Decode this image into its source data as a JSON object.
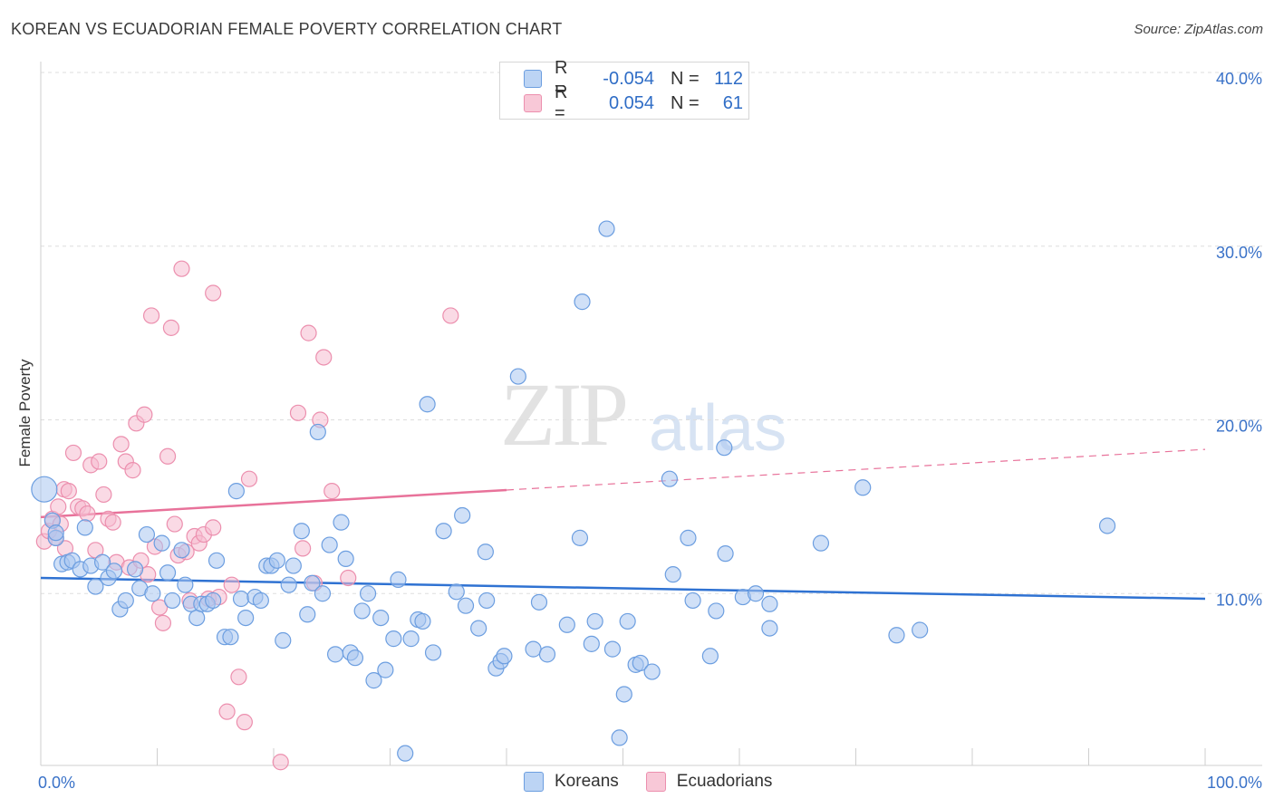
{
  "title": "KOREAN VS ECUADORIAN FEMALE POVERTY CORRELATION CHART",
  "source": "Source: ZipAtlas.com",
  "watermark": {
    "zip": "ZIP",
    "atlas": "atlas"
  },
  "legend": {
    "rows": [
      {
        "r_label": "R =",
        "r_value": "-0.054",
        "n_label": "N =",
        "n_value": "112"
      },
      {
        "r_label": "R =",
        "r_value": "0.054",
        "n_label": "N =",
        "n_value": "61"
      }
    ]
  },
  "bottom_legend": {
    "koreans": "Koreans",
    "ecuadorians": "Ecuadorians"
  },
  "colors": {
    "korean_fill": "#a9c7f0",
    "korean_stroke": "#6c9ee0",
    "korean_line": "#2f72d2",
    "ecuadorian_fill": "#f6bccf",
    "ecuadorian_stroke": "#ec8fae",
    "ecuadorian_line": "#e8729a",
    "grid": "#dedede",
    "axis_label": "#3a72c8"
  },
  "chart_data": {
    "type": "scatter",
    "title": "KOREAN VS ECUADORIAN FEMALE POVERTY CORRELATION CHART",
    "xlabel": "",
    "ylabel": "Female Poverty",
    "xlim": [
      0,
      100
    ],
    "ylim": [
      0,
      40
    ],
    "x_tick_labels": [
      "0.0%",
      "100.0%"
    ],
    "y_ticks": [
      10,
      20,
      30,
      40
    ],
    "y_tick_labels": [
      "10.0%",
      "20.0%",
      "30.0%",
      "40.0%"
    ],
    "grid": true,
    "series": [
      {
        "name": "Koreans",
        "r": -0.054,
        "n": 112,
        "trend": {
          "x0": 0,
          "y0": 10.9,
          "x1": 100,
          "y1": 9.7,
          "solid_until": 100
        },
        "points": [
          [
            0.3,
            16.0
          ],
          [
            1.0,
            14.2
          ],
          [
            1.3,
            13.2
          ],
          [
            1.8,
            11.7
          ],
          [
            2.3,
            11.8
          ],
          [
            2.7,
            11.9
          ],
          [
            3.4,
            11.4
          ],
          [
            3.8,
            13.8
          ],
          [
            4.3,
            11.6
          ],
          [
            4.7,
            10.4
          ],
          [
            5.3,
            11.8
          ],
          [
            5.8,
            10.9
          ],
          [
            6.3,
            11.3
          ],
          [
            6.8,
            9.1
          ],
          [
            7.3,
            9.6
          ],
          [
            8.1,
            11.4
          ],
          [
            8.5,
            10.3
          ],
          [
            9.1,
            13.4
          ],
          [
            9.6,
            10.0
          ],
          [
            10.4,
            12.9
          ],
          [
            10.9,
            11.2
          ],
          [
            11.3,
            9.6
          ],
          [
            12.1,
            12.5
          ],
          [
            12.4,
            10.5
          ],
          [
            12.9,
            9.4
          ],
          [
            13.4,
            8.6
          ],
          [
            13.8,
            9.4
          ],
          [
            14.3,
            9.4
          ],
          [
            14.8,
            9.6
          ],
          [
            15.1,
            11.9
          ],
          [
            15.8,
            7.5
          ],
          [
            16.3,
            7.5
          ],
          [
            16.8,
            15.9
          ],
          [
            17.2,
            9.7
          ],
          [
            17.6,
            8.6
          ],
          [
            18.4,
            9.8
          ],
          [
            18.9,
            9.6
          ],
          [
            19.4,
            11.6
          ],
          [
            19.8,
            11.6
          ],
          [
            20.3,
            11.9
          ],
          [
            20.8,
            7.3
          ],
          [
            21.3,
            10.5
          ],
          [
            21.7,
            11.6
          ],
          [
            22.4,
            13.6
          ],
          [
            22.9,
            8.8
          ],
          [
            23.3,
            10.6
          ],
          [
            23.8,
            19.3
          ],
          [
            24.2,
            10.0
          ],
          [
            24.8,
            12.8
          ],
          [
            25.3,
            6.5
          ],
          [
            25.8,
            14.1
          ],
          [
            26.2,
            12.0
          ],
          [
            26.6,
            6.6
          ],
          [
            27.0,
            6.3
          ],
          [
            27.6,
            9.0
          ],
          [
            28.1,
            10.0
          ],
          [
            28.6,
            5.0
          ],
          [
            29.2,
            8.6
          ],
          [
            29.6,
            5.6
          ],
          [
            30.3,
            7.4
          ],
          [
            30.7,
            10.8
          ],
          [
            31.3,
            0.8
          ],
          [
            31.8,
            7.4
          ],
          [
            32.4,
            8.5
          ],
          [
            32.8,
            8.4
          ],
          [
            33.2,
            20.9
          ],
          [
            33.7,
            6.6
          ],
          [
            34.6,
            13.6
          ],
          [
            35.7,
            10.1
          ],
          [
            36.2,
            14.5
          ],
          [
            36.5,
            9.3
          ],
          [
            37.6,
            8.0
          ],
          [
            38.2,
            12.4
          ],
          [
            38.3,
            9.6
          ],
          [
            39.1,
            5.7
          ],
          [
            39.5,
            6.1
          ],
          [
            39.8,
            6.4
          ],
          [
            41.0,
            22.5
          ],
          [
            42.3,
            6.8
          ],
          [
            42.8,
            9.5
          ],
          [
            43.5,
            6.5
          ],
          [
            45.2,
            8.2
          ],
          [
            46.3,
            13.2
          ],
          [
            46.5,
            26.8
          ],
          [
            47.3,
            7.1
          ],
          [
            47.6,
            8.4
          ],
          [
            48.6,
            31.0
          ],
          [
            49.1,
            6.8
          ],
          [
            49.7,
            1.7
          ],
          [
            50.1,
            4.2
          ],
          [
            50.4,
            8.4
          ],
          [
            51.1,
            5.9
          ],
          [
            51.5,
            6.0
          ],
          [
            52.5,
            5.5
          ],
          [
            54.0,
            16.6
          ],
          [
            54.3,
            11.1
          ],
          [
            55.6,
            13.2
          ],
          [
            56.0,
            9.6
          ],
          [
            57.5,
            6.4
          ],
          [
            58.0,
            9.0
          ],
          [
            58.7,
            18.4
          ],
          [
            58.8,
            12.3
          ],
          [
            60.3,
            9.8
          ],
          [
            61.4,
            10.0
          ],
          [
            62.6,
            9.4
          ],
          [
            62.6,
            8.0
          ],
          [
            67.0,
            12.9
          ],
          [
            70.6,
            16.1
          ],
          [
            73.5,
            7.6
          ],
          [
            75.5,
            7.9
          ],
          [
            91.6,
            13.9
          ],
          [
            1.3,
            13.5
          ]
        ]
      },
      {
        "name": "Ecuadorians",
        "r": 0.054,
        "n": 61,
        "trend": {
          "x0": 0,
          "y0": 14.4,
          "x1": 100,
          "y1": 18.3,
          "solid_until": 40
        },
        "points": [
          [
            0.3,
            13.0
          ],
          [
            0.7,
            13.6
          ],
          [
            1.0,
            14.3
          ],
          [
            1.3,
            13.2
          ],
          [
            1.7,
            14.0
          ],
          [
            2.0,
            16.0
          ],
          [
            2.4,
            15.9
          ],
          [
            2.8,
            18.1
          ],
          [
            3.2,
            15.0
          ],
          [
            3.6,
            14.9
          ],
          [
            4.0,
            14.6
          ],
          [
            4.3,
            17.4
          ],
          [
            4.7,
            12.5
          ],
          [
            5.0,
            17.6
          ],
          [
            5.4,
            15.7
          ],
          [
            5.8,
            14.3
          ],
          [
            6.2,
            14.1
          ],
          [
            6.5,
            11.8
          ],
          [
            6.9,
            18.6
          ],
          [
            7.3,
            17.6
          ],
          [
            7.6,
            11.5
          ],
          [
            7.9,
            17.1
          ],
          [
            8.2,
            19.8
          ],
          [
            8.6,
            11.9
          ],
          [
            8.9,
            20.3
          ],
          [
            9.2,
            11.1
          ],
          [
            9.5,
            26.0
          ],
          [
            9.8,
            12.7
          ],
          [
            10.2,
            9.2
          ],
          [
            10.5,
            8.3
          ],
          [
            10.9,
            17.9
          ],
          [
            11.2,
            25.3
          ],
          [
            11.5,
            14.0
          ],
          [
            11.8,
            12.2
          ],
          [
            12.1,
            28.7
          ],
          [
            12.5,
            12.4
          ],
          [
            12.8,
            9.6
          ],
          [
            13.2,
            13.3
          ],
          [
            13.6,
            12.9
          ],
          [
            14.0,
            13.4
          ],
          [
            14.4,
            9.7
          ],
          [
            14.8,
            13.8
          ],
          [
            14.8,
            27.3
          ],
          [
            15.3,
            9.8
          ],
          [
            16.0,
            3.2
          ],
          [
            16.4,
            10.5
          ],
          [
            17.0,
            5.2
          ],
          [
            17.5,
            2.6
          ],
          [
            17.9,
            16.6
          ],
          [
            20.6,
            0.3
          ],
          [
            22.1,
            20.4
          ],
          [
            22.5,
            12.6
          ],
          [
            23.0,
            25.0
          ],
          [
            23.5,
            10.6
          ],
          [
            24.0,
            20.0
          ],
          [
            24.3,
            23.6
          ],
          [
            25.0,
            15.9
          ],
          [
            26.4,
            10.9
          ],
          [
            35.2,
            26.0
          ],
          [
            1.5,
            15.0
          ],
          [
            2.1,
            12.6
          ]
        ]
      }
    ]
  }
}
